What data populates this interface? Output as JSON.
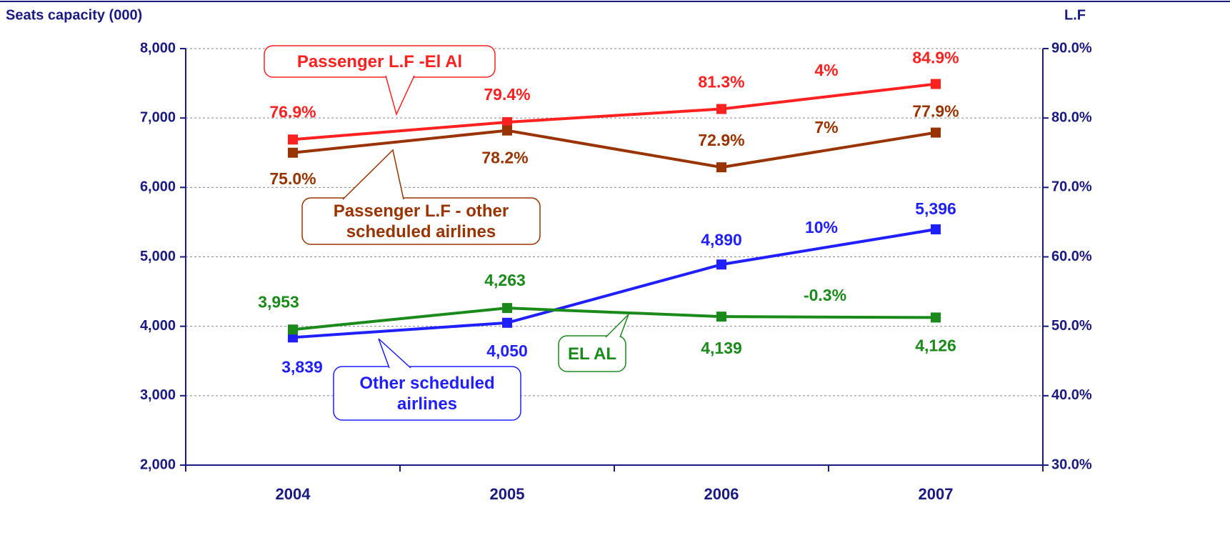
{
  "chart_data": {
    "type": "line",
    "y_label": "Seats capacity (000)",
    "y2_label": "L.F",
    "categories": [
      "2004",
      "2005",
      "2006",
      "2007"
    ],
    "ylim": [
      2000,
      8000
    ],
    "yticks": [
      {
        "value": 2000,
        "label": "2,000"
      },
      {
        "value": 3000,
        "label": "3,000"
      },
      {
        "value": 4000,
        "label": "4,000"
      },
      {
        "value": 5000,
        "label": "5,000"
      },
      {
        "value": 6000,
        "label": "6,000"
      },
      {
        "value": 7000,
        "label": "7,000"
      },
      {
        "value": 8000,
        "label": "8,000"
      }
    ],
    "y2lim": [
      30,
      90
    ],
    "y2ticks": [
      {
        "value": 30,
        "label": "30.0%"
      },
      {
        "value": 40,
        "label": "40.0%"
      },
      {
        "value": 50,
        "label": "50.0%"
      },
      {
        "value": 60,
        "label": "60.0%"
      },
      {
        "value": 70,
        "label": "70.0%"
      },
      {
        "value": 80,
        "label": "80.0%"
      },
      {
        "value": 90,
        "label": "90.0%"
      }
    ],
    "grid": true,
    "series": [
      {
        "name": "Passenger L.F  -El Al",
        "color": "#ff2020",
        "axis": "y2",
        "values": [
          76.9,
          79.4,
          81.3,
          84.9
        ],
        "value_labels": [
          "76.9%",
          "79.4%",
          "81.3%",
          "84.9%"
        ]
      },
      {
        "name": "Passenger L.F - other scheduled airlines",
        "color": "#993300",
        "axis": "y2",
        "values": [
          75.0,
          78.2,
          72.9,
          77.9
        ],
        "value_labels": [
          "75.0%",
          "78.2%",
          "72.9%",
          "77.9%"
        ]
      },
      {
        "name": "Other scheduled airlines",
        "color": "#1f1fff",
        "values": [
          3839,
          4050,
          4890,
          5396
        ],
        "value_labels": [
          "3,839",
          "4,050",
          "4,890",
          "5,396"
        ]
      },
      {
        "name": "EL AL",
        "color": "#1a8a1a",
        "values": [
          3953,
          4263,
          4139,
          4126
        ],
        "value_labels": [
          "3,953",
          "4,263",
          "4,139",
          "4,126"
        ]
      }
    ],
    "annotations": [
      "4%",
      "7%",
      "10%",
      "-0.3%"
    ]
  }
}
